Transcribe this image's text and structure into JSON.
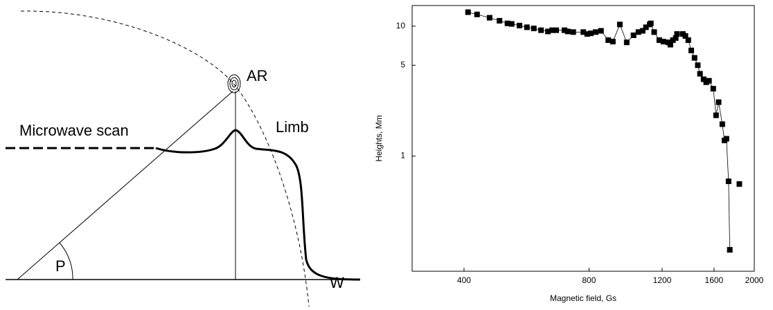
{
  "diagram": {
    "labels": {
      "ar": "AR",
      "scan": "Microwave scan",
      "limb": "Limb",
      "angle": "P",
      "west": "W"
    }
  },
  "chart_data": {
    "type": "scatter",
    "log_x": true,
    "log_y": true,
    "xlabel": "Magnetic field, Gs",
    "ylabel": "Heights, Mm",
    "xlim": [
      300,
      2000
    ],
    "ylim": [
      0.13,
      14.4
    ],
    "xticks": [
      400,
      800,
      1200,
      1600,
      2000
    ],
    "yticks": [
      1,
      5,
      10
    ],
    "series": [
      {
        "color": "#000000",
        "line": true,
        "x": [
          409,
          430,
          461,
          487,
          509,
          521,
          544,
          567,
          589,
          613,
          637,
          652,
          667,
          698,
          711,
          733,
          775,
          792,
          808,
          830,
          855,
          890,
          913,
          949,
          986,
          1024,
          1052,
          1077,
          1097,
          1120,
          1127,
          1148,
          1181,
          1208,
          1241,
          1256,
          1274,
          1294,
          1303,
          1346,
          1365,
          1387,
          1410,
          1436,
          1462,
          1480,
          1510,
          1532,
          1556,
          1593,
          1618,
          1641,
          1675,
          1695,
          1714,
          1734,
          1746
        ],
        "values": [
          12.8,
          12.3,
          11.6,
          11.0,
          10.5,
          10.4,
          10.1,
          9.8,
          9.6,
          9.3,
          9.1,
          9.3,
          9.3,
          9.3,
          9.1,
          9.0,
          9.0,
          8.7,
          8.8,
          9.0,
          9.2,
          7.8,
          7.6,
          10.3,
          7.5,
          8.5,
          9.0,
          9.2,
          9.8,
          10.3,
          10.5,
          9.0,
          7.8,
          7.6,
          7.5,
          7.2,
          7.8,
          8.1,
          8.7,
          8.7,
          8.4,
          7.8,
          6.5,
          5.7,
          5.0,
          4.3,
          3.9,
          3.7,
          3.8,
          3.3,
          2.06,
          2.6,
          1.76,
          1.32,
          1.36,
          0.64,
          0.19
        ]
      },
      {
        "color": "#000000",
        "line": false,
        "x": [
          1841
        ],
        "values": [
          0.61
        ]
      }
    ]
  }
}
